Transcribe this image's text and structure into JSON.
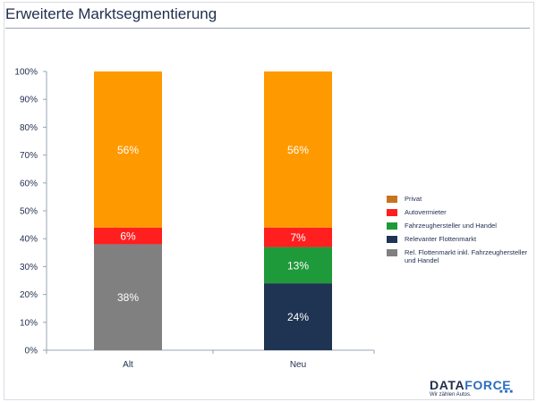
{
  "title": "Erweiterte Marktsegmentierung",
  "chart_data": {
    "type": "bar",
    "stacked": true,
    "categories": [
      "Alt",
      "Neu"
    ],
    "series": [
      {
        "name": "Rel. Flottenmarkt inkl. Fahrzeughersteller und Handel",
        "color": "#808080",
        "values": [
          38,
          null
        ],
        "labels": [
          "38%",
          null
        ]
      },
      {
        "name": "Relevanter Flottenmarkt",
        "color": "#1f3352",
        "values": [
          null,
          24
        ],
        "labels": [
          null,
          "24%"
        ]
      },
      {
        "name": "Fahrzeughersteller und Handel",
        "color": "#1f9a3a",
        "values": [
          null,
          13
        ],
        "labels": [
          null,
          "13%"
        ]
      },
      {
        "name": "Autovermieter",
        "color": "#ff1f1f",
        "values": [
          6,
          7
        ],
        "labels": [
          "6%",
          "7%"
        ]
      },
      {
        "name": "Privat",
        "color": "#ff9900",
        "values": [
          56,
          56
        ],
        "labels": [
          "56%",
          "56%"
        ]
      }
    ],
    "ylim": [
      0,
      100
    ],
    "yticks": [
      "0%",
      "10%",
      "20%",
      "30%",
      "40%",
      "50%",
      "60%",
      "70%",
      "80%",
      "90%",
      "100%"
    ],
    "legend_position": "right",
    "grid": false
  },
  "legend": [
    {
      "label": "Privat",
      "color": "#c8731f"
    },
    {
      "label": "Autovermieter",
      "color": "#ff1f1f"
    },
    {
      "label": "Fahrzeughersteller und Handel",
      "color": "#1f9a3a"
    },
    {
      "label": "Relevanter Flottenmarkt",
      "color": "#1f3352"
    },
    {
      "label": "Rel. Flottenmarkt inkl. Fahrzeughersteller und Handel",
      "color": "#808080"
    }
  ],
  "logo": {
    "word_a": "DATA",
    "word_b": "FORCE",
    "tagline": "Wir zählen Autos."
  }
}
